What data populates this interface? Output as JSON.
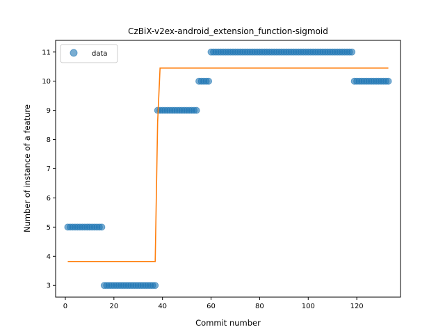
{
  "chart_data": {
    "type": "scatter",
    "title": "CzBiX-v2ex-android_extension_function-sigmoid",
    "xlabel": "Commit number",
    "ylabel": "Number of instance of a feature",
    "xlim": [
      -4,
      138
    ],
    "ylim": [
      2.6,
      11.4
    ],
    "xticks": [
      0,
      20,
      40,
      60,
      80,
      100,
      120
    ],
    "yticks": [
      3,
      4,
      5,
      6,
      7,
      8,
      9,
      10,
      11
    ],
    "grid": false,
    "legend": {
      "position": "top-left",
      "entries": [
        "data"
      ]
    },
    "colors": {
      "data": "#1f77b4",
      "fit": "#ff7f0e"
    },
    "series": [
      {
        "name": "data",
        "kind": "scatter",
        "segments": [
          {
            "x_start": 1,
            "x_end": 15,
            "y": 5
          },
          {
            "x_start": 16,
            "x_end": 37,
            "y": 3
          },
          {
            "x_start": 38,
            "x_end": 54,
            "y": 9
          },
          {
            "x_start": 55,
            "x_end": 59,
            "y": 10
          },
          {
            "x_start": 60,
            "x_end": 118,
            "y": 11
          },
          {
            "x_start": 119,
            "x_end": 133,
            "y": 10
          }
        ]
      },
      {
        "kind": "line",
        "x": [
          1,
          37,
          38,
          39,
          133
        ],
        "y": [
          3.82,
          3.82,
          8.6,
          10.45,
          10.45
        ]
      }
    ]
  }
}
